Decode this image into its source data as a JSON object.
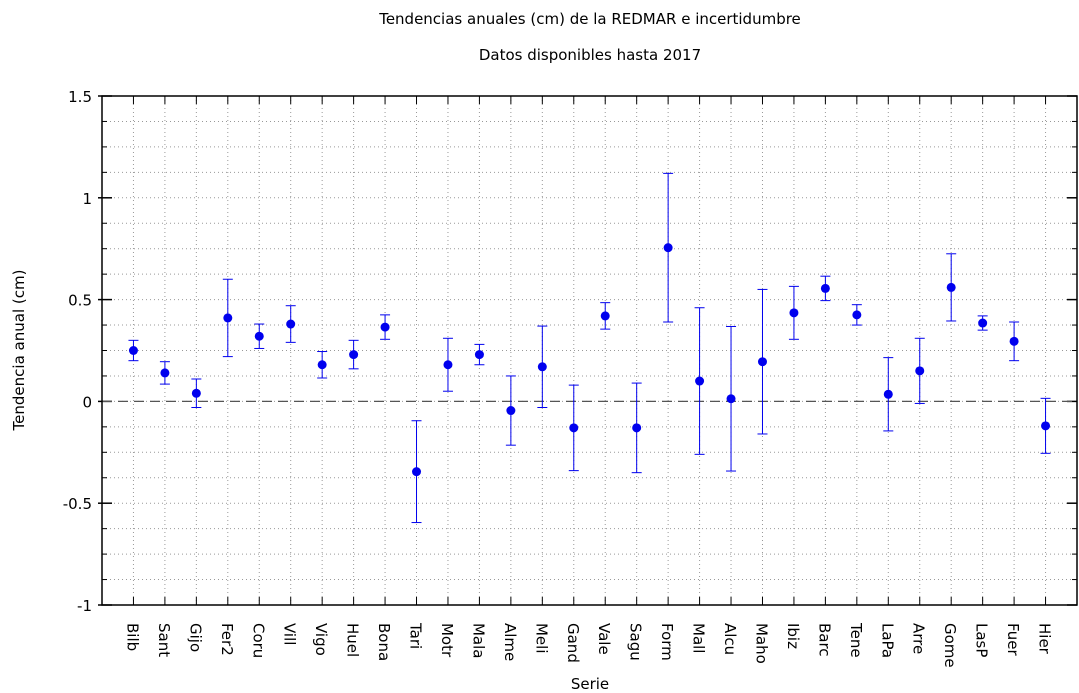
{
  "chart_data": {
    "type": "errorbar",
    "title": "Tendencias anuales (cm) de la REDMAR e incertidumbre",
    "subtitle": "Datos disponibles hasta 2017",
    "xlabel": "Serie",
    "ylabel": "Tendencia anual (cm)",
    "categories": [
      "Bilb",
      "Sant",
      "Gijo",
      "Fer2",
      "Coru",
      "Vill",
      "Vigo",
      "Huel",
      "Bona",
      "Tari",
      "Motr",
      "Mala",
      "Alme",
      "Meli",
      "Gand",
      "Vale",
      "Sagu",
      "Form",
      "Mall",
      "Alcu",
      "Maho",
      "Ibiz",
      "Barc",
      "Tene",
      "LaPa",
      "Arre",
      "Gome",
      "LasP",
      "Fuer",
      "Hier"
    ],
    "values": [
      0.25,
      0.14,
      0.04,
      0.41,
      0.32,
      0.38,
      0.18,
      0.23,
      0.365,
      -0.345,
      0.18,
      0.23,
      -0.045,
      0.17,
      -0.13,
      0.42,
      -0.13,
      0.755,
      0.1,
      0.013,
      0.195,
      0.435,
      0.555,
      0.425,
      0.035,
      0.15,
      0.56,
      0.385,
      0.295,
      -0.12
    ],
    "errors": [
      0.05,
      0.055,
      0.07,
      0.19,
      0.06,
      0.09,
      0.065,
      0.07,
      0.06,
      0.25,
      0.13,
      0.05,
      0.17,
      0.2,
      0.21,
      0.065,
      0.22,
      0.365,
      0.36,
      0.355,
      0.355,
      0.13,
      0.06,
      0.05,
      0.18,
      0.16,
      0.165,
      0.035,
      0.095,
      0.135
    ],
    "color": "#0000ee",
    "ylim": [
      -1,
      1.5
    ],
    "yticks": [
      -1,
      -0.5,
      0,
      0.5,
      1,
      1.5
    ],
    "hline": 0,
    "grid": true
  }
}
